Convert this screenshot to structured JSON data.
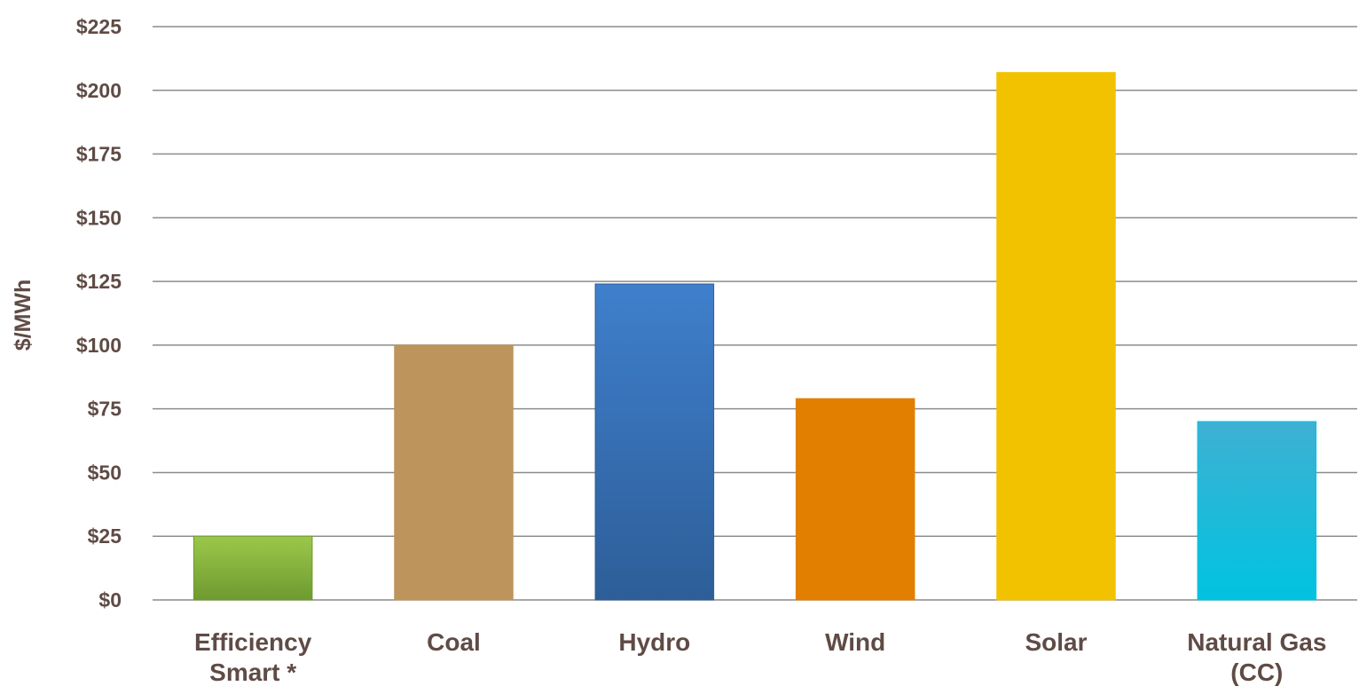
{
  "chart_data": {
    "type": "bar",
    "categories": [
      [
        "Efficiency",
        "Smart *"
      ],
      [
        "Coal"
      ],
      [
        "Hydro"
      ],
      [
        "Wind"
      ],
      [
        "Solar"
      ],
      [
        "Natural Gas",
        "(CC)"
      ]
    ],
    "values": [
      25,
      100,
      124,
      79,
      207,
      70
    ],
    "bar_colors": [
      [
        "#9bc84a",
        "#6e9a30"
      ],
      [
        "#bd955c",
        "#bd955c"
      ],
      [
        "#3f7fcc",
        "#2d5e98"
      ],
      [
        "#e27e00",
        "#e27e00"
      ],
      [
        "#f2c200",
        "#f2c200"
      ],
      [
        "#3fb0d3",
        "#00c3e0"
      ]
    ],
    "title": "",
    "xlabel": "",
    "ylabel": "$/MWh",
    "ylim": [
      0,
      225
    ],
    "yticks": [
      0,
      25,
      50,
      75,
      100,
      125,
      150,
      175,
      200,
      225
    ],
    "ytick_labels": [
      "$0",
      "$25",
      "$50",
      "$75",
      "$100",
      "$125",
      "$150",
      "$175",
      "$200",
      "$225"
    ],
    "grid": true,
    "legend": "none"
  }
}
